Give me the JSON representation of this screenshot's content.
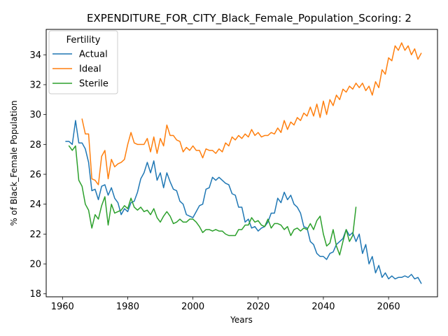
{
  "chart_data": {
    "type": "line",
    "title": "EXPENDITURE_FOR_CITY_Black_Female_Population_Scoring: 2",
    "xlabel": "Years",
    "ylabel": "% of Black_Female Population",
    "xlim": [
      1955,
      2075
    ],
    "ylim": [
      17.8,
      35.7
    ],
    "xticks": [
      1960,
      1980,
      2000,
      2020,
      2040,
      2060
    ],
    "yticks": [
      18,
      20,
      22,
      24,
      26,
      28,
      30,
      32,
      34
    ],
    "grid": false,
    "legend": {
      "title": "Fertility",
      "position": "top-left"
    },
    "series": [
      {
        "name": "Actual",
        "color": "#1f77b4",
        "x": [
          1961,
          1962,
          1963,
          1964,
          1965,
          1966,
          1967,
          1968,
          1969,
          1970,
          1971,
          1972,
          1973,
          1974,
          1975,
          1976,
          1977,
          1978,
          1979,
          1980,
          1981,
          1982,
          1983,
          1984,
          1985,
          1986,
          1987,
          1988,
          1989,
          1990,
          1991,
          1992,
          1993,
          1994,
          1995,
          1996,
          1997,
          1998,
          1999,
          2000,
          2001,
          2002,
          2003,
          2004,
          2005,
          2006,
          2007,
          2008,
          2009,
          2010,
          2011,
          2012,
          2013,
          2014,
          2015,
          2016,
          2017,
          2018,
          2019,
          2020,
          2021,
          2022,
          2023,
          2024,
          2025,
          2026,
          2027,
          2028,
          2029,
          2030,
          2031,
          2032,
          2033,
          2034,
          2035,
          2036,
          2037,
          2038,
          2039,
          2040,
          2041,
          2042,
          2043,
          2044,
          2045,
          2046,
          2047,
          2048,
          2049,
          2050,
          2051,
          2052,
          2053,
          2054,
          2055,
          2056,
          2057,
          2058,
          2059,
          2060,
          2061,
          2062,
          2063,
          2064,
          2065,
          2066,
          2067,
          2068,
          2069,
          2070
        ],
        "values": [
          28.2,
          28.2,
          28.0,
          29.6,
          28.1,
          28.1,
          27.7,
          26.8,
          24.9,
          25.0,
          24.3,
          25.2,
          25.3,
          24.6,
          25.1,
          24.4,
          24.1,
          23.3,
          23.7,
          23.5,
          24.1,
          24.2,
          24.8,
          25.7,
          26.1,
          26.8,
          26.1,
          26.9,
          25.6,
          26.1,
          25.1,
          26.1,
          25.5,
          25.0,
          24.9,
          24.2,
          24.0,
          23.3,
          23.2,
          23.1,
          23.5,
          23.9,
          24.0,
          25.0,
          25.1,
          25.8,
          25.6,
          25.8,
          25.6,
          25.4,
          25.3,
          24.7,
          24.6,
          23.8,
          23.8,
          22.8,
          23.0,
          22.4,
          22.5,
          22.2,
          22.4,
          22.5,
          22.8,
          23.4,
          23.4,
          24.4,
          24.1,
          24.8,
          24.3,
          24.6,
          24.0,
          23.8,
          23.4,
          22.5,
          22.4,
          21.5,
          21.3,
          20.7,
          20.5,
          20.5,
          20.3,
          20.7,
          20.8,
          21.3,
          21.5,
          21.7,
          22.3,
          21.9,
          22.1,
          21.5,
          22.0,
          20.7,
          21.3,
          20.0,
          20.5,
          19.4,
          19.9,
          19.1,
          19.4,
          19.0,
          19.2,
          19.0,
          19.1,
          19.1,
          19.2,
          19.1,
          19.3,
          19.0,
          19.1,
          18.7
        ]
      },
      {
        "name": "Ideal",
        "color": "#ff7f0e",
        "x": [
          1966,
          1967,
          1968,
          1969,
          1970,
          1971,
          1972,
          1973,
          1974,
          1975,
          1976,
          1977,
          1978,
          1979,
          1980,
          1981,
          1982,
          1983,
          1984,
          1985,
          1986,
          1987,
          1988,
          1989,
          1990,
          1991,
          1992,
          1993,
          1994,
          1995,
          1996,
          1997,
          1998,
          1999,
          2000,
          2001,
          2002,
          2003,
          2004,
          2005,
          2006,
          2007,
          2008,
          2009,
          2010,
          2011,
          2012,
          2013,
          2014,
          2015,
          2016,
          2017,
          2018,
          2019,
          2020,
          2021,
          2022,
          2023,
          2024,
          2025,
          2026,
          2027,
          2028,
          2029,
          2030,
          2031,
          2032,
          2033,
          2034,
          2035,
          2036,
          2037,
          2038,
          2039,
          2040,
          2041,
          2042,
          2043,
          2044,
          2045,
          2046,
          2047,
          2048,
          2049,
          2050,
          2051,
          2052,
          2053,
          2054,
          2055,
          2056,
          2057,
          2058,
          2059,
          2060,
          2061,
          2062,
          2063,
          2064,
          2065,
          2066,
          2067,
          2068,
          2069,
          2070
        ],
        "values": [
          29.7,
          28.7,
          28.7,
          25.7,
          25.6,
          25.3,
          27.2,
          27.6,
          25.7,
          27.0,
          26.5,
          26.7,
          26.8,
          27.0,
          28.0,
          28.8,
          28.1,
          28.0,
          28.0,
          28.0,
          28.4,
          27.5,
          28.5,
          27.4,
          28.4,
          27.9,
          29.3,
          28.6,
          28.6,
          28.3,
          28.2,
          27.5,
          27.8,
          27.6,
          27.9,
          27.6,
          27.6,
          27.1,
          27.7,
          27.6,
          27.6,
          27.4,
          27.7,
          27.5,
          28.1,
          27.9,
          28.5,
          28.3,
          28.6,
          28.4,
          28.7,
          28.5,
          29.0,
          28.6,
          28.8,
          28.5,
          28.6,
          28.6,
          28.8,
          28.7,
          29.1,
          28.8,
          29.6,
          29.0,
          29.5,
          29.3,
          29.8,
          29.6,
          30.1,
          29.9,
          30.5,
          29.9,
          30.7,
          29.8,
          30.9,
          30.0,
          31.0,
          30.6,
          31.3,
          31.0,
          31.7,
          31.5,
          31.9,
          31.7,
          32.1,
          31.8,
          32.1,
          31.6,
          31.9,
          31.3,
          32.2,
          31.8,
          33.0,
          32.7,
          33.8,
          33.6,
          34.6,
          34.3,
          34.8,
          34.3,
          34.6,
          34.0,
          34.4,
          33.7,
          34.1
        ]
      },
      {
        "name": "Sterile",
        "color": "#2ca02c",
        "x": [
          1962,
          1963,
          1964,
          1965,
          1966,
          1967,
          1968,
          1969,
          1970,
          1971,
          1972,
          1973,
          1974,
          1975,
          1976,
          1977,
          1978,
          1979,
          1980,
          1981,
          1982,
          1983,
          1984,
          1985,
          1986,
          1987,
          1988,
          1989,
          1990,
          1991,
          1992,
          1993,
          1994,
          1995,
          1996,
          1997,
          1998,
          1999,
          2000,
          2001,
          2002,
          2003,
          2004,
          2005,
          2006,
          2007,
          2008,
          2009,
          2010,
          2011,
          2012,
          2013,
          2014,
          2015,
          2016,
          2017,
          2018,
          2019,
          2020,
          2021,
          2022,
          2023,
          2024,
          2025,
          2026,
          2027,
          2028,
          2029,
          2030,
          2031,
          2032,
          2033,
          2034,
          2035,
          2036,
          2037,
          2038,
          2039,
          2040,
          2041,
          2042,
          2043,
          2044,
          2045,
          2046,
          2047,
          2048,
          2049,
          2050
        ],
        "values": [
          27.9,
          27.6,
          27.9,
          25.6,
          25.2,
          24.0,
          23.6,
          22.4,
          23.3,
          23.0,
          23.9,
          24.5,
          22.6,
          24.0,
          23.4,
          23.5,
          23.6,
          23.9,
          23.7,
          24.4,
          23.8,
          23.6,
          23.8,
          23.5,
          23.6,
          23.3,
          23.7,
          23.1,
          22.8,
          23.2,
          23.5,
          23.2,
          22.7,
          22.8,
          23.0,
          22.8,
          22.8,
          23.0,
          23.0,
          22.8,
          22.5,
          22.1,
          22.3,
          22.3,
          22.2,
          22.3,
          22.2,
          22.2,
          22.0,
          21.9,
          21.9,
          21.9,
          22.3,
          22.3,
          22.6,
          22.6,
          23.1,
          22.8,
          22.9,
          22.6,
          22.5,
          23.0,
          22.4,
          22.7,
          22.7,
          22.6,
          22.3,
          22.5,
          21.9,
          22.3,
          22.4,
          22.2,
          22.4,
          22.3,
          22.7,
          22.3,
          22.9,
          23.2,
          22.0,
          21.2,
          21.4,
          22.3,
          21.2,
          20.6,
          21.5,
          22.3,
          21.5,
          21.9,
          23.8
        ]
      }
    ]
  }
}
